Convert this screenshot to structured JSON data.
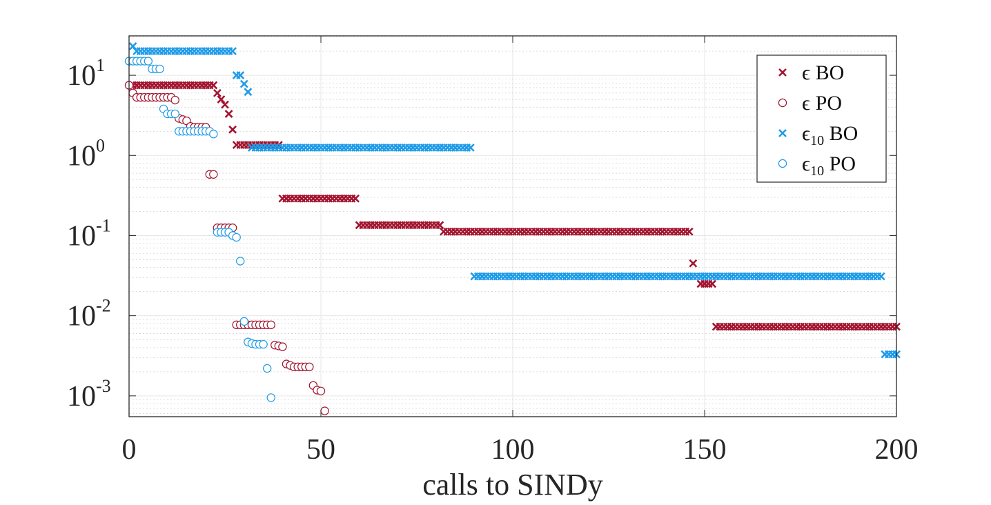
{
  "chart_data": {
    "type": "scatter",
    "title": "",
    "xlabel": "calls to SINDy",
    "ylabel": "",
    "xlim": [
      0,
      200
    ],
    "ylim": [
      0.00055,
      31
    ],
    "yscale": "log",
    "grid": true,
    "minor_grid": true,
    "x_ticks": [
      0,
      50,
      100,
      150,
      200
    ],
    "x_tick_labels": [
      "0",
      "50",
      "100",
      "150",
      "200"
    ],
    "y_ticks": [
      0.001,
      0.01,
      0.1,
      1,
      10
    ],
    "y_tick_labels": [
      {
        "base": "10",
        "exp": "-3"
      },
      {
        "base": "10",
        "exp": "-2"
      },
      {
        "base": "10",
        "exp": "-1"
      },
      {
        "base": "10",
        "exp": "0"
      },
      {
        "base": "10",
        "exp": "1"
      }
    ],
    "legend": {
      "position": "top-right",
      "entries": [
        {
          "symbol": "ϵ",
          "sub": "",
          "text": "BO"
        },
        {
          "symbol": "ϵ",
          "sub": "",
          "text": "PO"
        },
        {
          "symbol": "ϵ",
          "sub": "10",
          "text": "BO"
        },
        {
          "symbol": "ϵ",
          "sub": "10",
          "text": "PO"
        }
      ]
    },
    "series": [
      {
        "marker": "x",
        "color": "#A2142F",
        "segments": [
          [
            1,
            22,
            7.5
          ],
          [
            40,
            59,
            0.29
          ],
          [
            60,
            81,
            0.135
          ],
          [
            82,
            146,
            0.112
          ],
          [
            153,
            200,
            0.0073
          ]
        ],
        "points": [
          [
            23,
            6.0
          ],
          [
            24,
            5.0
          ],
          [
            25,
            4.3
          ],
          [
            26,
            3.3
          ],
          [
            27,
            2.1
          ],
          [
            28,
            1.35
          ],
          [
            29,
            1.35
          ],
          [
            30,
            1.35
          ],
          [
            31,
            1.35
          ],
          [
            32,
            1.35
          ],
          [
            33,
            1.35
          ],
          [
            34,
            1.35
          ],
          [
            35,
            1.35
          ],
          [
            36,
            1.35
          ],
          [
            37,
            1.35
          ],
          [
            38,
            1.35
          ],
          [
            39,
            1.35
          ],
          [
            147,
            0.045
          ],
          [
            149,
            0.025
          ],
          [
            150,
            0.025
          ],
          [
            151,
            0.025
          ],
          [
            152,
            0.025
          ]
        ]
      },
      {
        "marker": "o",
        "color": "#A2142F",
        "points": [
          [
            0,
            7.5
          ],
          [
            1,
            6.0
          ],
          [
            2,
            5.3
          ],
          [
            3,
            5.3
          ],
          [
            4,
            5.3
          ],
          [
            5,
            5.3
          ],
          [
            6,
            5.3
          ],
          [
            7,
            5.3
          ],
          [
            8,
            5.3
          ],
          [
            9,
            5.3
          ],
          [
            10,
            5.3
          ],
          [
            11,
            5.3
          ],
          [
            12,
            4.9
          ],
          [
            13,
            2.9
          ],
          [
            14,
            2.8
          ],
          [
            15,
            2.7
          ],
          [
            16,
            2.3
          ],
          [
            17,
            2.25
          ],
          [
            18,
            2.25
          ],
          [
            19,
            2.25
          ],
          [
            20,
            2.25
          ],
          [
            21,
            0.58
          ],
          [
            22,
            0.58
          ],
          [
            23,
            0.125
          ],
          [
            24,
            0.125
          ],
          [
            25,
            0.125
          ],
          [
            26,
            0.125
          ],
          [
            27,
            0.125
          ],
          [
            28,
            0.0077
          ],
          [
            29,
            0.0077
          ],
          [
            30,
            0.0077
          ],
          [
            31,
            0.0077
          ],
          [
            32,
            0.0077
          ],
          [
            33,
            0.0077
          ],
          [
            34,
            0.0077
          ],
          [
            35,
            0.0077
          ],
          [
            36,
            0.0077
          ],
          [
            37,
            0.0077
          ],
          [
            38,
            0.0043
          ],
          [
            39,
            0.0042
          ],
          [
            40,
            0.0041
          ],
          [
            41,
            0.0025
          ],
          [
            42,
            0.0024
          ],
          [
            43,
            0.0023
          ],
          [
            44,
            0.0023
          ],
          [
            45,
            0.0023
          ],
          [
            46,
            0.0023
          ],
          [
            47,
            0.0023
          ],
          [
            48,
            0.00135
          ],
          [
            49,
            0.00118
          ],
          [
            50,
            0.00115
          ],
          [
            51,
            0.00065
          ]
        ]
      },
      {
        "marker": "x",
        "color": "#1E9BE8",
        "segments": [
          [
            2,
            27,
            20
          ],
          [
            32,
            89,
            1.25
          ],
          [
            90,
            196,
            0.031
          ],
          [
            197,
            200,
            0.0033
          ]
        ],
        "points": [
          [
            1,
            23
          ],
          [
            28,
            10
          ],
          [
            29,
            10
          ],
          [
            30,
            7.8
          ],
          [
            31,
            6.2
          ]
        ]
      },
      {
        "marker": "o",
        "color": "#1E9BE8",
        "points": [
          [
            0,
            15
          ],
          [
            1,
            15
          ],
          [
            2,
            15
          ],
          [
            3,
            15
          ],
          [
            4,
            15
          ],
          [
            5,
            15
          ],
          [
            6,
            12
          ],
          [
            7,
            12
          ],
          [
            8,
            12
          ],
          [
            9,
            3.8
          ],
          [
            10,
            3.3
          ],
          [
            11,
            3.3
          ],
          [
            12,
            3.3
          ],
          [
            13,
            2.0
          ],
          [
            14,
            2.0
          ],
          [
            15,
            2.0
          ],
          [
            16,
            2.0
          ],
          [
            17,
            2.0
          ],
          [
            18,
            2.0
          ],
          [
            19,
            2.0
          ],
          [
            20,
            2.0
          ],
          [
            21,
            2.0
          ],
          [
            22,
            1.85
          ],
          [
            23,
            0.11
          ],
          [
            24,
            0.11
          ],
          [
            25,
            0.11
          ],
          [
            26,
            0.11
          ],
          [
            27,
            0.1
          ],
          [
            28,
            0.095
          ],
          [
            29,
            0.048
          ],
          [
            30,
            0.0085
          ],
          [
            31,
            0.0047
          ],
          [
            32,
            0.0045
          ],
          [
            33,
            0.0044
          ],
          [
            34,
            0.0044
          ],
          [
            35,
            0.0044
          ],
          [
            36,
            0.0022
          ],
          [
            37,
            0.00095
          ]
        ]
      }
    ]
  }
}
